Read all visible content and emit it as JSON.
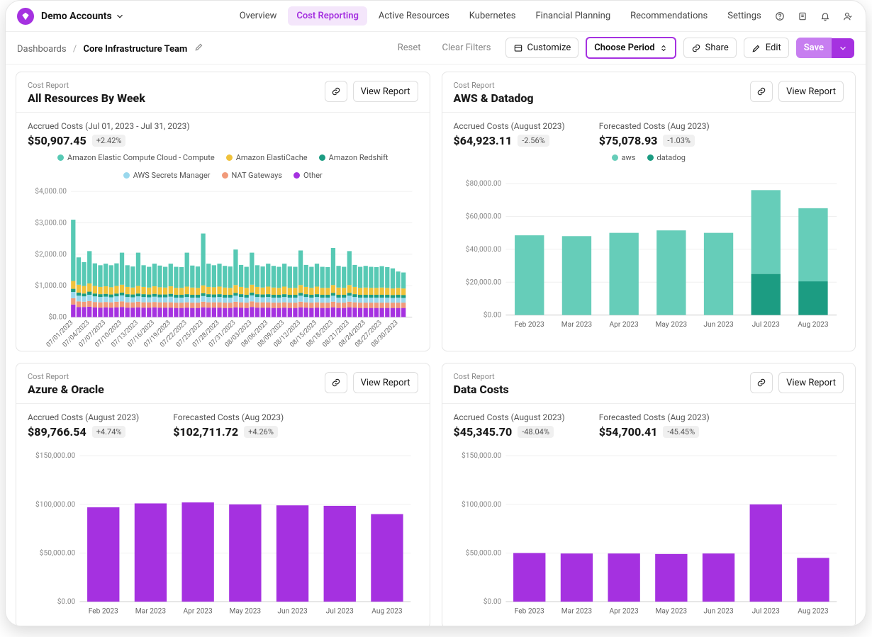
{
  "brand": "Demo Accounts",
  "nav": [
    "Overview",
    "Cost Reporting",
    "Active Resources",
    "Kubernetes",
    "Financial Planning",
    "Recommendations",
    "Settings"
  ],
  "nav_active": 1,
  "breadcrumb": {
    "root": "Dashboards",
    "current": "Core Infrastructure Team"
  },
  "toolbar": {
    "reset": "Reset",
    "clear": "Clear Filters",
    "customize": "Customize",
    "period": "Choose Period",
    "share": "Share",
    "edit": "Edit",
    "save": "Save"
  },
  "cards": {
    "topleft": {
      "over": "Cost Report",
      "title": "All Resources By Week",
      "view": "View Report",
      "metrics": [
        {
          "label": "Accrued Costs (Jul 01, 2023 - Jul 31, 2023)",
          "value": "$50,907.45",
          "delta": "+2.42%"
        }
      ],
      "chart": {
        "type": "stacked-bar",
        "y": {
          "min": 0,
          "max": 4000,
          "ticks": [
            0,
            1000,
            2000,
            3000,
            4000
          ],
          "labels": [
            "$0.00",
            "$1,000.00",
            "$2,000.00",
            "$3,000.00",
            "$4,000.00"
          ]
        },
        "legend": [
          {
            "label": "Amazon Elastic Compute Cloud - Compute",
            "color": "#57c9b4"
          },
          {
            "label": "Amazon ElastiCache",
            "color": "#f0c23b"
          },
          {
            "label": "Amazon Redshift",
            "color": "#1c9c82"
          },
          {
            "label": "AWS Secrets Manager",
            "color": "#9ad8ed"
          },
          {
            "label": "NAT Gateways",
            "color": "#f19a7a"
          },
          {
            "label": "Other",
            "color": "#a531e0"
          }
        ],
        "categories": [
          "07/01/2023",
          "07/04/2023",
          "07/07/2023",
          "07/10/2023",
          "07/13/2023",
          "07/16/2023",
          "07/19/2023",
          "07/22/2023",
          "07/25/2023",
          "07/28/2023",
          "07/31/2023",
          "08/03/2023",
          "08/06/2023",
          "08/09/2023",
          "08/12/2023",
          "08/15/2023",
          "08/18/2023",
          "08/21/2023",
          "08/24/2023",
          "08/27/2023",
          "08/30/2023"
        ],
        "label_every": 1,
        "bars_per_group": 3,
        "series_colors": [
          "#a531e0",
          "#f19a7a",
          "#9ad8ed",
          "#1c9c82",
          "#f0c23b",
          "#57c9b4"
        ],
        "data": [
          [
            [
              400,
              200,
              200,
              100,
              250,
              1950
            ],
            [
              320,
              180,
              180,
              100,
              250,
              870
            ],
            [
              320,
              170,
              170,
              90,
              240,
              760
            ]
          ],
          [
            [
              330,
              180,
              200,
              100,
              260,
              1030
            ],
            [
              310,
              170,
              180,
              90,
              240,
              720
            ],
            [
              300,
              170,
              170,
              90,
              230,
              690
            ]
          ],
          [
            [
              310,
              170,
              170,
              90,
              240,
              720
            ],
            [
              300,
              170,
              160,
              90,
              230,
              700
            ],
            [
              310,
              180,
              170,
              90,
              240,
              720
            ]
          ],
          [
            [
              320,
              180,
              190,
              90,
              250,
              1020
            ],
            [
              300,
              170,
              170,
              90,
              230,
              690
            ],
            [
              300,
              170,
              160,
              90,
              220,
              670
            ]
          ],
          [
            [
              310,
              180,
              170,
              90,
              240,
              1060
            ],
            [
              300,
              170,
              170,
              90,
              230,
              690
            ],
            [
              300,
              170,
              160,
              90,
              220,
              660
            ]
          ],
          [
            [
              310,
              170,
              170,
              90,
              240,
              720
            ],
            [
              300,
              170,
              160,
              90,
              230,
              690
            ],
            [
              300,
              170,
              160,
              90,
              220,
              660
            ]
          ],
          [
            [
              300,
              170,
              180,
              90,
              240,
              720
            ],
            [
              290,
              170,
              160,
              90,
              220,
              670
            ],
            [
              290,
              170,
              160,
              90,
              220,
              660
            ]
          ],
          [
            [
              300,
              170,
              170,
              90,
              240,
              1080
            ],
            [
              290,
              170,
              160,
              90,
              230,
              700
            ],
            [
              290,
              170,
              160,
              90,
              220,
              680
            ]
          ],
          [
            [
              310,
              180,
              180,
              90,
              250,
              1650
            ],
            [
              300,
              170,
              170,
              90,
              230,
              740
            ],
            [
              300,
              170,
              160,
              90,
              230,
              700
            ]
          ],
          [
            [
              300,
              170,
              170,
              90,
              240,
              730
            ],
            [
              290,
              170,
              160,
              90,
              230,
              690
            ],
            [
              290,
              170,
              160,
              90,
              220,
              680
            ]
          ],
          [
            [
              310,
              180,
              190,
              90,
              250,
              1130
            ],
            [
              300,
              170,
              170,
              90,
              230,
              700
            ],
            [
              290,
              170,
              160,
              90,
              220,
              670
            ]
          ],
          [
            [
              320,
              180,
              190,
              90,
              250,
              1020
            ],
            [
              300,
              170,
              170,
              90,
              230,
              690
            ],
            [
              300,
              170,
              160,
              90,
              220,
              670
            ]
          ],
          [
            [
              300,
              170,
              170,
              90,
              240,
              730
            ],
            [
              290,
              170,
              160,
              90,
              230,
              690
            ],
            [
              290,
              170,
              160,
              90,
              220,
              670
            ]
          ],
          [
            [
              300,
              170,
              170,
              90,
              240,
              730
            ],
            [
              290,
              170,
              160,
              90,
              220,
              680
            ],
            [
              290,
              170,
              160,
              90,
              220,
              670
            ]
          ],
          [
            [
              310,
              180,
              190,
              90,
              250,
              1100
            ],
            [
              300,
              170,
              170,
              90,
              230,
              700
            ],
            [
              290,
              170,
              160,
              90,
              220,
              670
            ]
          ],
          [
            [
              300,
              170,
              170,
              90,
              240,
              730
            ],
            [
              290,
              170,
              160,
              90,
              220,
              670
            ],
            [
              290,
              170,
              160,
              90,
              220,
              660
            ]
          ],
          [
            [
              310,
              180,
              190,
              90,
              250,
              1180
            ],
            [
              290,
              170,
              160,
              90,
              230,
              690
            ],
            [
              290,
              170,
              160,
              90,
              220,
              670
            ]
          ],
          [
            [
              310,
              180,
              190,
              90,
              250,
              1080
            ],
            [
              300,
              170,
              170,
              90,
              230,
              700
            ],
            [
              290,
              170,
              160,
              90,
              220,
              670
            ]
          ],
          [
            [
              290,
              170,
              160,
              90,
              230,
              690
            ],
            [
              290,
              170,
              160,
              90,
              220,
              670
            ],
            [
              290,
              170,
              160,
              90,
              220,
              660
            ]
          ],
          [
            [
              290,
              170,
              160,
              90,
              230,
              680
            ],
            [
              290,
              170,
              160,
              90,
              220,
              660
            ],
            [
              290,
              170,
              150,
              90,
              210,
              640
            ]
          ],
          [
            [
              290,
              170,
              160,
              90,
              220,
              520
            ],
            [
              290,
              170,
              150,
              90,
              210,
              510
            ],
            [
              0,
              0,
              0,
              0,
              0,
              0
            ]
          ]
        ]
      }
    },
    "topright": {
      "over": "Cost Report",
      "title": "AWS & Datadog",
      "view": "View Report",
      "metrics": [
        {
          "label": "Accrued Costs (August 2023)",
          "value": "$64,923.11",
          "delta": "-2.56%"
        },
        {
          "label": "Forecasted Costs (Aug 2023)",
          "value": "$75,078.93",
          "delta": "-1.03%"
        }
      ],
      "chart": {
        "type": "stacked-bar",
        "y": {
          "min": 0,
          "max": 80000,
          "ticks": [
            0,
            20000,
            40000,
            60000,
            80000
          ],
          "labels": [
            "$0.00",
            "$20,000.00",
            "$40,000.00",
            "$60,000.00",
            "$80,000.00"
          ]
        },
        "legend": [
          {
            "label": "aws",
            "color": "#66cdb9"
          },
          {
            "label": "datadog",
            "color": "#1c9c82"
          }
        ],
        "categories": [
          "Feb 2023",
          "Mar 2023",
          "Apr 2023",
          "May 2023",
          "Jun 2023",
          "Jul 2023",
          "Aug 2023"
        ],
        "series_colors": [
          "#1c9c82",
          "#66cdb9"
        ],
        "data": [
          [
            [
              0,
              48500
            ]
          ],
          [
            [
              0,
              48000
            ]
          ],
          [
            [
              0,
              50000
            ]
          ],
          [
            [
              0,
              51500
            ]
          ],
          [
            [
              0,
              50000
            ]
          ],
          [
            [
              25000,
              51000
            ]
          ],
          [
            [
              20500,
              44500
            ]
          ]
        ]
      }
    },
    "bottomleft": {
      "over": "Cost Report",
      "title": "Azure & Oracle",
      "view": "View Report",
      "metrics": [
        {
          "label": "Accrued Costs (August 2023)",
          "value": "$89,766.54",
          "delta": "+4.74%"
        },
        {
          "label": "Forecasted Costs (Aug 2023)",
          "value": "$102,711.72",
          "delta": "+4.26%"
        }
      ],
      "chart": {
        "type": "bar",
        "y": {
          "min": 0,
          "max": 150000,
          "ticks": [
            0,
            50000,
            100000,
            150000
          ],
          "labels": [
            "$0.00",
            "$50,000.00",
            "$100,000.00",
            "$150,000.00"
          ]
        },
        "categories": [
          "Feb 2023",
          "Mar 2023",
          "Apr 2023",
          "May 2023",
          "Jun 2023",
          "Jul 2023",
          "Aug 2023"
        ],
        "color": "#a531e0",
        "values": [
          97000,
          101000,
          102000,
          100000,
          99000,
          98500,
          90000
        ]
      }
    },
    "bottomright": {
      "over": "Cost Report",
      "title": "Data Costs",
      "view": "View Report",
      "metrics": [
        {
          "label": "Accrued Costs (August 2023)",
          "value": "$45,345.70",
          "delta": "-48.04%"
        },
        {
          "label": "Forecasted Costs (Aug 2023)",
          "value": "$54,700.41",
          "delta": "-45.45%"
        }
      ],
      "chart": {
        "type": "bar",
        "y": {
          "min": 0,
          "max": 150000,
          "ticks": [
            0,
            50000,
            100000,
            150000
          ],
          "labels": [
            "$0.00",
            "$50,000.00",
            "$100,000.00",
            "$150,000.00"
          ]
        },
        "categories": [
          "Feb 2023",
          "Mar 2023",
          "Apr 2023",
          "May 2023",
          "Jun 2023",
          "Jul 2023",
          "Aug 2023"
        ],
        "color": "#a531e0",
        "values": [
          50000,
          49500,
          49500,
          49000,
          49500,
          100000,
          45000
        ]
      }
    }
  }
}
